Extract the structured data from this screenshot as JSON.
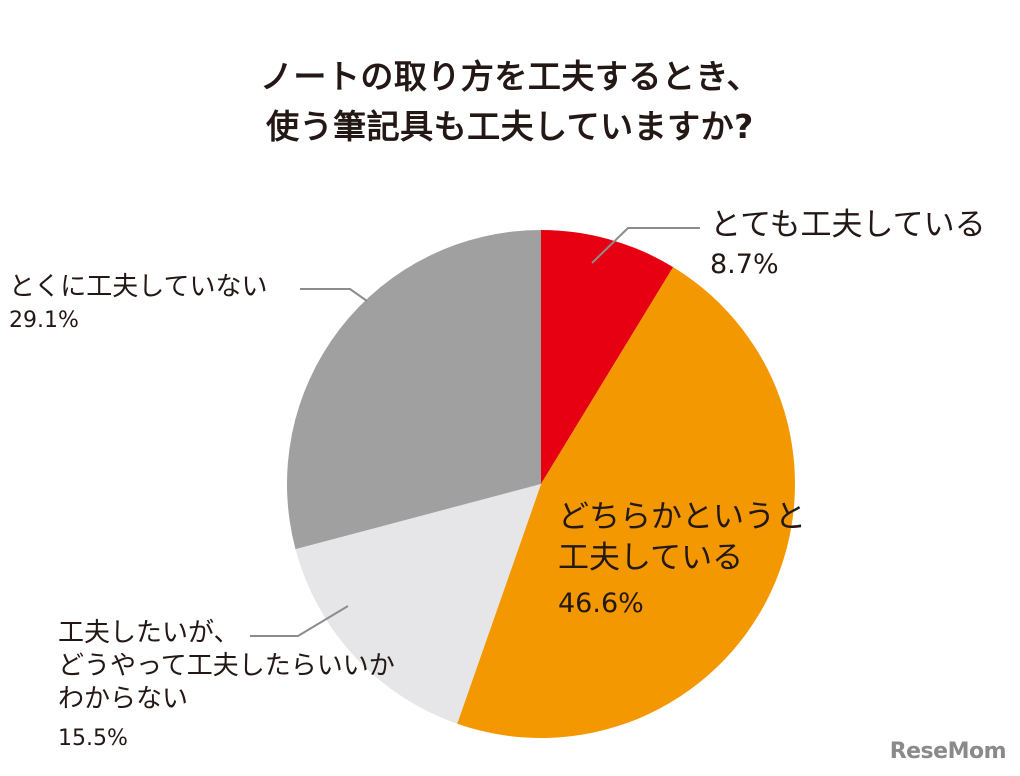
{
  "title": {
    "line1": "ノートの取り方を工夫するとき、",
    "line2": "使う筆記具も工夫していますか?"
  },
  "chart_data": {
    "type": "pie",
    "title": "ノートの取り方を工夫するとき、使う筆記具も工夫していますか?",
    "start_angle": "12 o'clock",
    "direction": "clockwise",
    "slices": [
      {
        "label": "とても工夫している",
        "value": 8.7,
        "color": "#e60012"
      },
      {
        "label": "どちらかというと工夫している",
        "value": 46.6,
        "color": "#f39800"
      },
      {
        "label": "工夫したいが、どうやって工夫したらいいかわからない",
        "value": 15.5,
        "color": "#e6e6e8"
      },
      {
        "label": "とくに工夫していない",
        "value": 29.1,
        "color": "#a0a0a0"
      }
    ],
    "unit": "%"
  },
  "labels": {
    "very": {
      "line1": "とても工夫している",
      "pct": "8.7%"
    },
    "somewhat": {
      "line1": "どちらかというと",
      "line2": "工夫している",
      "pct": "46.6%"
    },
    "want": {
      "line1": "工夫したいが、",
      "line2": "どうやって工夫したらいいか",
      "line3": "わからない",
      "pct": "15.5%"
    },
    "not": {
      "line1": "とくに工夫していない",
      "pct": "29.1%"
    }
  },
  "logo": {
    "text": "ReseMom"
  }
}
